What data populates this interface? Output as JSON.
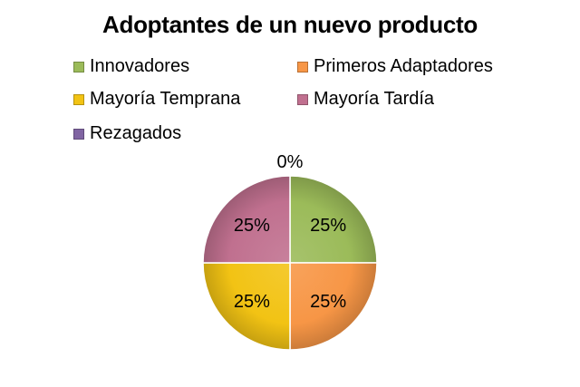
{
  "chart_data": {
    "type": "pie",
    "title": "Adoptantes de un nuevo producto",
    "legend_position": "top",
    "categories": [
      "Innovadores",
      "Primeros Adaptadores",
      "Mayoría Temprana",
      "Mayoría Tardía",
      "Rezagados"
    ],
    "values": [
      25,
      25,
      25,
      25,
      0
    ],
    "labels": [
      "25%",
      "25%",
      "25%",
      "25%",
      "0%"
    ],
    "colors": [
      "#9bbb59",
      "#f79646",
      "#f2c314",
      "#c0708f",
      "#8064a2"
    ]
  }
}
